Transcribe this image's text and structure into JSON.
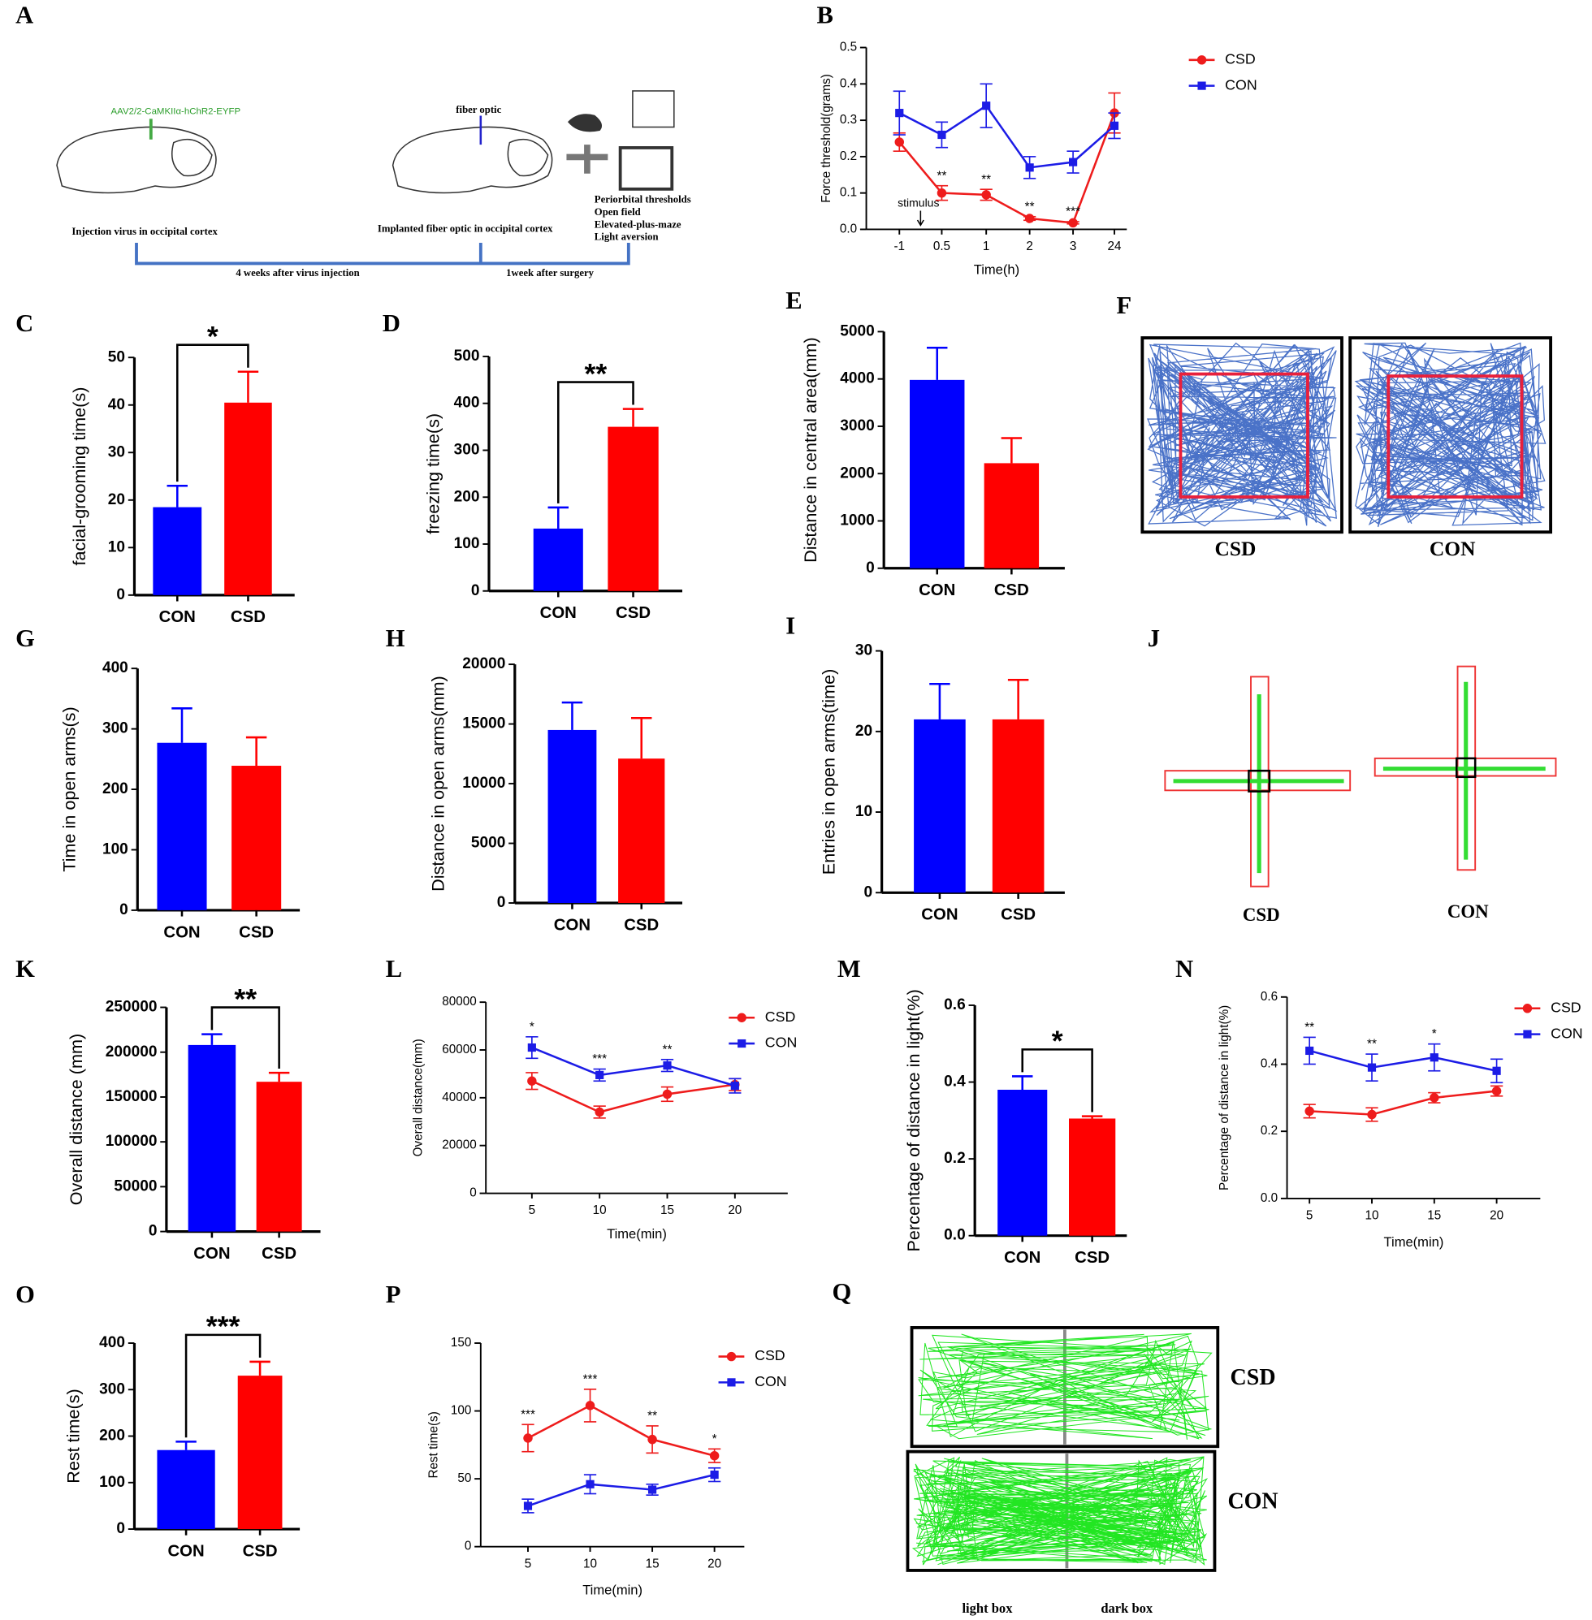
{
  "figure": {
    "A": {
      "panel": "A",
      "virus": "AAV2/2-CaMKIIα-hChR2-EYFP",
      "fiber": "fiber optic",
      "step1": "Injection virus in occipital cortex",
      "step2": "Implanted fiber optic in occipital cortex",
      "tests": [
        "Periorbital thresholds",
        "Open field",
        "Elevated-plus-maze",
        "Light aversion"
      ],
      "interval1": "4 weeks after virus injection",
      "interval2": "1week after surgery"
    },
    "F": {
      "panel": "F",
      "labels": [
        "CSD",
        "CON"
      ]
    },
    "J": {
      "panel": "J",
      "labels": [
        "CSD",
        "CON"
      ]
    },
    "Q": {
      "panel": "Q",
      "labels": [
        "CSD",
        "CON"
      ],
      "boxes": [
        "light box",
        "dark box"
      ]
    }
  },
  "chart_data": [
    {
      "panel": "B",
      "type": "line",
      "ylabel": "Force threshold(grams)",
      "xlabel": "Time(h)",
      "categories": [
        "-1",
        "0.5",
        "1",
        "2",
        "3",
        "24"
      ],
      "ylim": [
        0,
        0.5
      ],
      "yticks": [
        {
          "value": 0,
          "label": "0.0"
        },
        0.1,
        0.2,
        0.3,
        0.4,
        0.5
      ],
      "annotation": "stimulus",
      "series": [
        {
          "name": "CSD",
          "color": "#ee1c1c",
          "marker": "circle",
          "values": [
            0.24,
            0.1,
            0.095,
            0.03,
            0.018,
            0.32
          ],
          "errors": [
            0.025,
            0.02,
            0.015,
            0.005,
            0.003,
            0.055
          ],
          "stars": [
            null,
            "**",
            "**",
            "**",
            "***",
            null
          ]
        },
        {
          "name": "CON",
          "color": "#1c1ce6",
          "marker": "square",
          "values": [
            0.32,
            0.26,
            0.34,
            0.17,
            0.185,
            0.285
          ],
          "errors": [
            0.06,
            0.035,
            0.06,
            0.03,
            0.03,
            0.035
          ]
        }
      ]
    },
    {
      "panel": "C",
      "type": "bar",
      "ylabel": "facial-grooming time(s)",
      "categories": [
        "CON",
        "CSD"
      ],
      "colors": [
        "#0000ff",
        "#ff0000"
      ],
      "values": [
        18.5,
        40.5
      ],
      "errors": [
        4.5,
        6.5
      ],
      "ylim": [
        0,
        50
      ],
      "yticks": [
        0,
        10,
        20,
        30,
        40,
        50
      ],
      "significance": "*"
    },
    {
      "panel": "D",
      "type": "bar",
      "ylabel": "freezing time(s)",
      "categories": [
        "CON",
        "CSD"
      ],
      "colors": [
        "#0000ff",
        "#ff0000"
      ],
      "values": [
        133,
        350
      ],
      "errors": [
        45,
        38
      ],
      "ylim": [
        0,
        500
      ],
      "yticks": [
        0,
        100,
        200,
        300,
        400,
        500
      ],
      "significance": "**"
    },
    {
      "panel": "E",
      "type": "bar",
      "ylabel": "Distance in central area(mm)",
      "categories": [
        "CON",
        "CSD"
      ],
      "colors": [
        "#0000ff",
        "#ff0000"
      ],
      "values": [
        3980,
        2220
      ],
      "errors": [
        680,
        530
      ],
      "ylim": [
        0,
        5000
      ],
      "yticks": [
        0,
        1000,
        2000,
        3000,
        4000,
        5000
      ]
    },
    {
      "panel": "G",
      "type": "bar",
      "ylabel": "Time in open arms(s)",
      "categories": [
        "CON",
        "CSD"
      ],
      "colors": [
        "#0000ff",
        "#ff0000"
      ],
      "values": [
        277,
        239
      ],
      "errors": [
        57,
        47
      ],
      "ylim": [
        0,
        400
      ],
      "yticks": [
        0,
        100,
        200,
        300,
        400
      ]
    },
    {
      "panel": "H",
      "type": "bar",
      "ylabel": "Distance in open arms(mm)",
      "categories": [
        "CON",
        "CSD"
      ],
      "colors": [
        "#0000ff",
        "#ff0000"
      ],
      "values": [
        14500,
        12100
      ],
      "errors": [
        2300,
        3400
      ],
      "ylim": [
        0,
        20000
      ],
      "yticks": [
        0,
        5000,
        10000,
        15000,
        20000
      ]
    },
    {
      "panel": "I",
      "type": "bar",
      "ylabel": "Entries in open arms(time)",
      "categories": [
        "CON",
        "CSD"
      ],
      "colors": [
        "#0000ff",
        "#ff0000"
      ],
      "values": [
        21.5,
        21.5
      ],
      "errors": [
        4.4,
        4.9
      ],
      "ylim": [
        0,
        30
      ],
      "yticks": [
        0,
        10,
        20,
        30
      ]
    },
    {
      "panel": "K",
      "type": "bar",
      "ylabel": "Overall distance (mm)",
      "categories": [
        "CON",
        "CSD"
      ],
      "colors": [
        "#0000ff",
        "#ff0000"
      ],
      "values": [
        208000,
        167000
      ],
      "errors": [
        12000,
        10000
      ],
      "ylim": [
        0,
        250000
      ],
      "yticks": [
        0,
        50000,
        100000,
        150000,
        200000,
        250000
      ],
      "significance": "**"
    },
    {
      "panel": "L",
      "type": "line",
      "ylabel": "Overall distance(mm)",
      "xlabel": "Time(min)",
      "x": [
        5,
        10,
        15,
        20
      ],
      "xlim": [
        1.6,
        23.9
      ],
      "xticks": [
        5,
        10,
        15,
        20
      ],
      "ylim": [
        0,
        80000
      ],
      "yticks": [
        0,
        20000,
        40000,
        60000,
        80000
      ],
      "series": [
        {
          "name": "CSD",
          "color": "#ee1c1c",
          "marker": "circle",
          "values": [
            47000,
            34000,
            41500,
            45500
          ],
          "errors": [
            3500,
            2500,
            3000,
            2500
          ]
        },
        {
          "name": "CON",
          "color": "#1c1ce6",
          "marker": "square",
          "values": [
            61000,
            49500,
            53500,
            45000
          ],
          "errors": [
            4500,
            2500,
            2500,
            3000
          ],
          "stars": [
            "*",
            "***",
            "**",
            null
          ]
        }
      ]
    },
    {
      "panel": "M",
      "type": "bar",
      "ylabel": "Percentage of distance in light(%)",
      "categories": [
        "CON",
        "CSD"
      ],
      "colors": [
        "#0000ff",
        "#ff0000"
      ],
      "values": [
        0.38,
        0.305
      ],
      "errors": [
        0.035,
        0.006
      ],
      "ylim": [
        0,
        0.6
      ],
      "yticks": [
        {
          "value": 0,
          "label": "0.0"
        },
        0.2,
        0.4,
        0.6
      ],
      "significance": "*"
    },
    {
      "panel": "N",
      "type": "line",
      "ylabel": "Percentage of distance in light(%)",
      "xlabel": "Time(min)",
      "x": [
        5,
        10,
        15,
        20
      ],
      "xlim": [
        3.2,
        23.5
      ],
      "xticks": [
        5,
        10,
        15,
        20
      ],
      "ylim": [
        0,
        0.6
      ],
      "yticks": [
        {
          "value": 0,
          "label": "0.0"
        },
        0.2,
        0.4,
        0.6
      ],
      "series": [
        {
          "name": "CSD",
          "color": "#ee1c1c",
          "marker": "circle",
          "values": [
            0.26,
            0.25,
            0.3,
            0.32
          ],
          "errors": [
            0.02,
            0.02,
            0.015,
            0.015
          ]
        },
        {
          "name": "CON",
          "color": "#1c1ce6",
          "marker": "square",
          "values": [
            0.44,
            0.39,
            0.42,
            0.38
          ],
          "errors": [
            0.04,
            0.04,
            0.04,
            0.035
          ],
          "stars": [
            "**",
            "**",
            "*",
            null
          ]
        }
      ]
    },
    {
      "panel": "O",
      "type": "bar",
      "ylabel": "Rest time(s)",
      "categories": [
        "CON",
        "CSD"
      ],
      "colors": [
        "#0000ff",
        "#ff0000"
      ],
      "values": [
        170,
        330
      ],
      "errors": [
        18,
        30
      ],
      "ylim": [
        0,
        400
      ],
      "yticks": [
        0,
        100,
        200,
        300,
        400
      ],
      "significance": "***"
    },
    {
      "panel": "P",
      "type": "line",
      "ylabel": "Rest time(s)",
      "xlabel": "Time(min)",
      "x": [
        5,
        10,
        15,
        20
      ],
      "xlim": [
        1.2,
        22.4
      ],
      "xticks": [
        5,
        10,
        15,
        20
      ],
      "ylim": [
        0,
        150
      ],
      "yticks": [
        0,
        50,
        100,
        150
      ],
      "series": [
        {
          "name": "CSD",
          "color": "#ee1c1c",
          "marker": "circle",
          "values": [
            80,
            104,
            79,
            67
          ],
          "errors": [
            10,
            12,
            10,
            5
          ],
          "stars": [
            "***",
            "***",
            "**",
            "*"
          ]
        },
        {
          "name": "CON",
          "color": "#1c1ce6",
          "marker": "square",
          "values": [
            30,
            46,
            42,
            53
          ],
          "errors": [
            5,
            7,
            4,
            5
          ]
        }
      ]
    }
  ]
}
